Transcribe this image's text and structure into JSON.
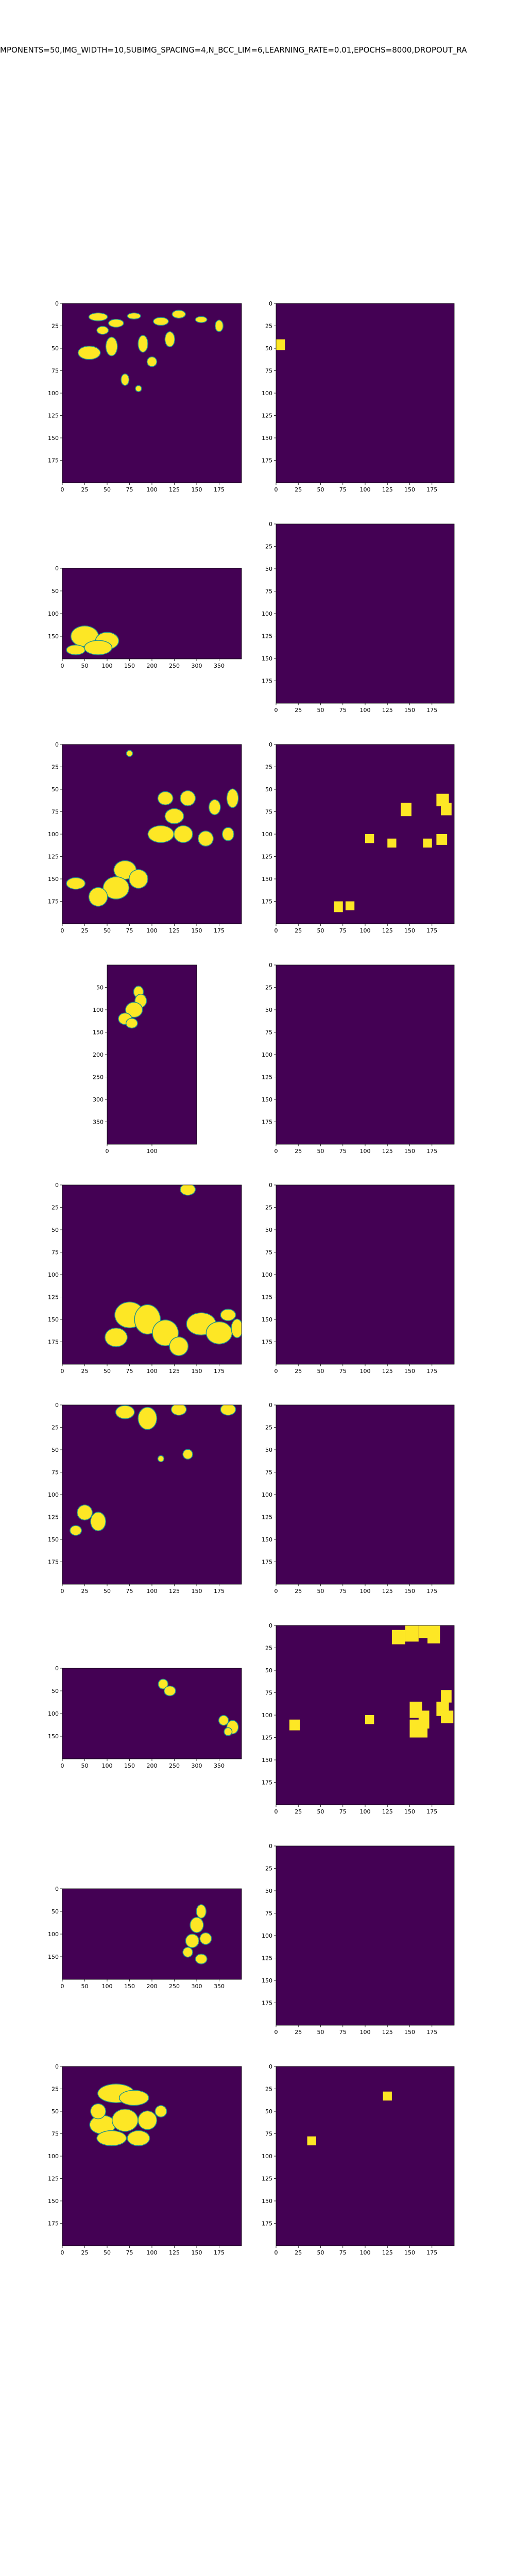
{
  "figure": {
    "title": "MPONENTS=50,IMG_WIDTH=10,SUBIMG_SPACING=4,N_BCC_LIM=6,LEARNING_RATE=0.01,EPOCHS=8000,DROPOUT_RA"
  },
  "colors": {
    "background": "#440154",
    "foreground": "#fde725",
    "edge": "#21918c"
  },
  "chart_data": [
    {
      "type": "heatmap",
      "name": "row1-left",
      "xlim": [
        0,
        200
      ],
      "ylim": [
        200,
        0
      ],
      "xticks": [
        0,
        25,
        50,
        75,
        100,
        125,
        150,
        175
      ],
      "yticks": [
        0,
        25,
        50,
        75,
        100,
        125,
        150,
        175
      ],
      "blobs": [
        [
          40,
          15,
          10,
          4
        ],
        [
          60,
          22,
          8,
          4
        ],
        [
          80,
          14,
          7,
          3
        ],
        [
          110,
          20,
          8,
          4
        ],
        [
          130,
          12,
          7,
          4
        ],
        [
          155,
          18,
          6,
          3
        ],
        [
          30,
          55,
          12,
          7
        ],
        [
          55,
          48,
          6,
          10
        ],
        [
          90,
          45,
          5,
          9
        ],
        [
          120,
          40,
          5,
          8
        ],
        [
          70,
          85,
          4,
          6
        ],
        [
          45,
          30,
          6,
          4
        ],
        [
          175,
          25,
          4,
          6
        ],
        [
          100,
          65,
          5,
          5
        ],
        [
          85,
          95,
          3,
          3
        ]
      ]
    },
    {
      "type": "heatmap",
      "name": "row1-right",
      "xlim": [
        0,
        200
      ],
      "ylim": [
        200,
        0
      ],
      "xticks": [
        0,
        25,
        50,
        75,
        100,
        125,
        150,
        175
      ],
      "yticks": [
        0,
        25,
        50,
        75,
        100,
        125,
        150,
        175
      ],
      "squares": [
        [
          0,
          40,
          10,
          12
        ]
      ]
    },
    {
      "type": "heatmap",
      "name": "row2-left",
      "xlim": [
        0,
        400
      ],
      "ylim": [
        200,
        0
      ],
      "xticks": [
        0,
        50,
        100,
        150,
        200,
        250,
        300,
        350
      ],
      "yticks": [
        0,
        50,
        100,
        150
      ],
      "blobs": [
        [
          50,
          150,
          30,
          22
        ],
        [
          100,
          160,
          25,
          18
        ],
        [
          30,
          180,
          20,
          10
        ],
        [
          80,
          175,
          30,
          15
        ]
      ]
    },
    {
      "type": "heatmap",
      "name": "row2-right",
      "xlim": [
        0,
        200
      ],
      "ylim": [
        200,
        0
      ],
      "xticks": [
        0,
        25,
        50,
        75,
        100,
        125,
        150,
        175
      ],
      "yticks": [
        0,
        25,
        50,
        75,
        100,
        125,
        150,
        175
      ],
      "squares": []
    },
    {
      "type": "heatmap",
      "name": "row3-left",
      "xlim": [
        0,
        200
      ],
      "ylim": [
        200,
        0
      ],
      "xticks": [
        0,
        25,
        50,
        75,
        100,
        125,
        150,
        175
      ],
      "yticks": [
        0,
        25,
        50,
        75,
        100,
        125,
        150,
        175
      ],
      "blobs": [
        [
          75,
          10,
          3,
          3
        ],
        [
          115,
          60,
          8,
          7
        ],
        [
          140,
          60,
          8,
          8
        ],
        [
          170,
          70,
          6,
          8
        ],
        [
          190,
          60,
          6,
          10
        ],
        [
          125,
          80,
          10,
          8
        ],
        [
          110,
          100,
          14,
          9
        ],
        [
          135,
          100,
          10,
          9
        ],
        [
          160,
          105,
          8,
          8
        ],
        [
          70,
          140,
          12,
          10
        ],
        [
          60,
          160,
          14,
          12
        ],
        [
          40,
          170,
          10,
          10
        ],
        [
          85,
          150,
          10,
          10
        ],
        [
          15,
          155,
          10,
          6
        ],
        [
          185,
          100,
          6,
          7
        ]
      ]
    },
    {
      "type": "heatmap",
      "name": "row3-right",
      "xlim": [
        0,
        200
      ],
      "ylim": [
        200,
        0
      ],
      "xticks": [
        0,
        25,
        50,
        75,
        100,
        125,
        150,
        175
      ],
      "yticks": [
        0,
        25,
        50,
        75,
        100,
        125,
        150,
        175
      ],
      "squares": [
        [
          65,
          175,
          10,
          12
        ],
        [
          78,
          175,
          10,
          10
        ],
        [
          100,
          100,
          10,
          10
        ],
        [
          125,
          105,
          10,
          10
        ],
        [
          140,
          65,
          12,
          15
        ],
        [
          165,
          105,
          10,
          10
        ],
        [
          180,
          100,
          12,
          12
        ],
        [
          180,
          55,
          14,
          14
        ],
        [
          185,
          65,
          12,
          14
        ]
      ]
    },
    {
      "type": "heatmap",
      "name": "row4-left",
      "xlim": [
        0,
        200
      ],
      "ylim": [
        400,
        0
      ],
      "xticks": [
        0,
        100
      ],
      "yticks": [
        50,
        100,
        150,
        200,
        250,
        300,
        350
      ],
      "blobs": [
        [
          70,
          60,
          10,
          12
        ],
        [
          75,
          80,
          12,
          14
        ],
        [
          60,
          100,
          18,
          16
        ],
        [
          40,
          120,
          14,
          12
        ],
        [
          55,
          130,
          12,
          10
        ]
      ]
    },
    {
      "type": "heatmap",
      "name": "row4-right",
      "xlim": [
        0,
        200
      ],
      "ylim": [
        200,
        0
      ],
      "xticks": [
        0,
        25,
        50,
        75,
        100,
        125,
        150,
        175
      ],
      "yticks": [
        0,
        25,
        50,
        75,
        100,
        125,
        150,
        175
      ],
      "squares": []
    },
    {
      "type": "heatmap",
      "name": "row5-left",
      "xlim": [
        0,
        200
      ],
      "ylim": [
        200,
        0
      ],
      "xticks": [
        0,
        25,
        50,
        75,
        100,
        125,
        150,
        175
      ],
      "yticks": [
        0,
        25,
        50,
        75,
        100,
        125,
        150,
        175
      ],
      "blobs": [
        [
          140,
          5,
          8,
          6
        ],
        [
          75,
          145,
          16,
          14
        ],
        [
          95,
          150,
          14,
          16
        ],
        [
          115,
          165,
          14,
          14
        ],
        [
          60,
          170,
          12,
          10
        ],
        [
          155,
          155,
          16,
          12
        ],
        [
          175,
          165,
          14,
          12
        ],
        [
          130,
          180,
          10,
          10
        ],
        [
          195,
          160,
          6,
          10
        ],
        [
          185,
          145,
          8,
          6
        ]
      ]
    },
    {
      "type": "heatmap",
      "name": "row5-right",
      "xlim": [
        0,
        200
      ],
      "ylim": [
        200,
        0
      ],
      "xticks": [
        0,
        25,
        50,
        75,
        100,
        125,
        150,
        175
      ],
      "yticks": [
        0,
        25,
        50,
        75,
        100,
        125,
        150,
        175
      ],
      "squares": []
    },
    {
      "type": "heatmap",
      "name": "row6-left",
      "xlim": [
        0,
        200
      ],
      "ylim": [
        200,
        0
      ],
      "xticks": [
        0,
        25,
        50,
        75,
        100,
        125,
        150,
        175
      ],
      "yticks": [
        0,
        25,
        50,
        75,
        100,
        125,
        150,
        175
      ],
      "blobs": [
        [
          70,
          8,
          10,
          7
        ],
        [
          95,
          15,
          10,
          12
        ],
        [
          130,
          5,
          8,
          6
        ],
        [
          185,
          5,
          8,
          6
        ],
        [
          140,
          55,
          5,
          5
        ],
        [
          110,
          60,
          3,
          3
        ],
        [
          25,
          120,
          8,
          8
        ],
        [
          40,
          130,
          8,
          10
        ],
        [
          15,
          140,
          6,
          5
        ]
      ]
    },
    {
      "type": "heatmap",
      "name": "row6-right",
      "xlim": [
        0,
        200
      ],
      "ylim": [
        200,
        0
      ],
      "xticks": [
        0,
        25,
        50,
        75,
        100,
        125,
        150,
        175
      ],
      "yticks": [
        0,
        25,
        50,
        75,
        100,
        125,
        150,
        175
      ],
      "squares": []
    },
    {
      "type": "heatmap",
      "name": "row7-left",
      "xlim": [
        0,
        400
      ],
      "ylim": [
        200,
        0
      ],
      "xticks": [
        0,
        50,
        100,
        150,
        200,
        250,
        300,
        350
      ],
      "yticks": [
        0,
        50,
        100,
        150
      ],
      "blobs": [
        [
          225,
          35,
          10,
          10
        ],
        [
          240,
          50,
          12,
          10
        ],
        [
          360,
          115,
          10,
          10
        ],
        [
          380,
          130,
          12,
          14
        ],
        [
          370,
          140,
          8,
          8
        ]
      ]
    },
    {
      "type": "heatmap",
      "name": "row7-right",
      "xlim": [
        0,
        200
      ],
      "ylim": [
        200,
        0
      ],
      "xticks": [
        0,
        25,
        50,
        75,
        100,
        125,
        150,
        175
      ],
      "yticks": [
        0,
        25,
        50,
        75,
        100,
        125,
        150,
        175
      ],
      "squares": [
        [
          130,
          5,
          15,
          16
        ],
        [
          145,
          0,
          15,
          18
        ],
        [
          160,
          0,
          12,
          14
        ],
        [
          170,
          0,
          14,
          20
        ],
        [
          185,
          72,
          12,
          14
        ],
        [
          180,
          85,
          14,
          16
        ],
        [
          150,
          85,
          14,
          18
        ],
        [
          160,
          95,
          12,
          20
        ],
        [
          150,
          105,
          20,
          20
        ],
        [
          15,
          105,
          12,
          12
        ],
        [
          100,
          100,
          10,
          10
        ],
        [
          185,
          95,
          14,
          14
        ]
      ]
    },
    {
      "type": "heatmap",
      "name": "row8-left",
      "xlim": [
        0,
        400
      ],
      "ylim": [
        200,
        0
      ],
      "xticks": [
        0,
        50,
        100,
        150,
        200,
        250,
        300,
        350
      ],
      "yticks": [
        0,
        50,
        100,
        150
      ],
      "blobs": [
        [
          310,
          50,
          10,
          14
        ],
        [
          300,
          80,
          14,
          16
        ],
        [
          290,
          115,
          14,
          14
        ],
        [
          320,
          110,
          12,
          12
        ],
        [
          280,
          140,
          10,
          10
        ],
        [
          310,
          155,
          12,
          10
        ]
      ]
    },
    {
      "type": "heatmap",
      "name": "row8-right",
      "xlim": [
        0,
        200
      ],
      "ylim": [
        200,
        0
      ],
      "xticks": [
        0,
        25,
        50,
        75,
        100,
        125,
        150,
        175
      ],
      "yticks": [
        0,
        25,
        50,
        75,
        100,
        125,
        150,
        175
      ],
      "squares": []
    },
    {
      "type": "heatmap",
      "name": "row9-left",
      "xlim": [
        0,
        200
      ],
      "ylim": [
        200,
        0
      ],
      "xticks": [
        0,
        25,
        50,
        75,
        100,
        125,
        150,
        175
      ],
      "yticks": [
        0,
        25,
        50,
        75,
        100,
        125,
        150,
        175
      ],
      "blobs": [
        [
          60,
          30,
          20,
          10
        ],
        [
          80,
          35,
          16,
          8
        ],
        [
          45,
          65,
          14,
          10
        ],
        [
          70,
          60,
          14,
          12
        ],
        [
          55,
          80,
          16,
          8
        ],
        [
          95,
          60,
          10,
          10
        ],
        [
          85,
          80,
          12,
          8
        ],
        [
          40,
          50,
          8,
          8
        ],
        [
          110,
          50,
          6,
          6
        ]
      ]
    },
    {
      "type": "heatmap",
      "name": "row9-right",
      "xlim": [
        0,
        200
      ],
      "ylim": [
        200,
        0
      ],
      "xticks": [
        0,
        25,
        50,
        75,
        100,
        125,
        150,
        175
      ],
      "yticks": [
        0,
        25,
        50,
        75,
        100,
        125,
        150,
        175
      ],
      "squares": [
        [
          120,
          28,
          10,
          10
        ],
        [
          35,
          78,
          10,
          10
        ]
      ]
    }
  ]
}
